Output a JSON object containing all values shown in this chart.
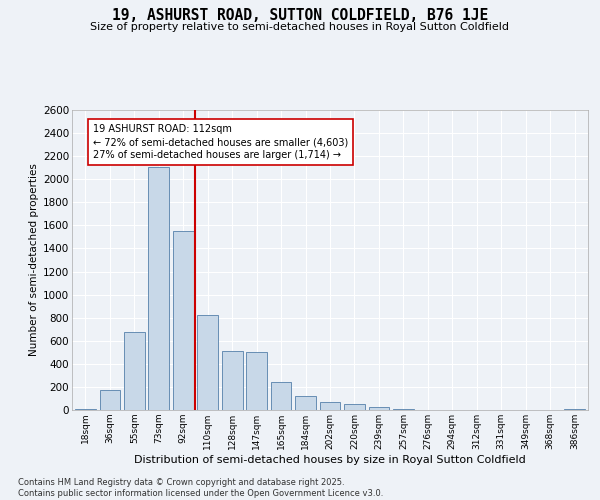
{
  "title": "19, ASHURST ROAD, SUTTON COLDFIELD, B76 1JE",
  "subtitle": "Size of property relative to semi-detached houses in Royal Sutton Coldfield",
  "xlabel": "Distribution of semi-detached houses by size in Royal Sutton Coldfield",
  "ylabel": "Number of semi-detached properties",
  "categories": [
    "18sqm",
    "36sqm",
    "55sqm",
    "73sqm",
    "92sqm",
    "110sqm",
    "128sqm",
    "147sqm",
    "165sqm",
    "184sqm",
    "202sqm",
    "220sqm",
    "239sqm",
    "257sqm",
    "276sqm",
    "294sqm",
    "312sqm",
    "331sqm",
    "349sqm",
    "368sqm",
    "386sqm"
  ],
  "values": [
    10,
    175,
    680,
    2110,
    1550,
    820,
    510,
    500,
    245,
    120,
    70,
    55,
    30,
    10,
    0,
    0,
    0,
    0,
    0,
    0,
    10
  ],
  "bar_color": "#c8d8e8",
  "bar_edge_color": "#5580aa",
  "vline_x_index": 4.5,
  "vline_color": "#cc0000",
  "annotation_text": "19 ASHURST ROAD: 112sqm\n← 72% of semi-detached houses are smaller (4,603)\n27% of semi-detached houses are larger (1,714) →",
  "annotation_box_color": "#ffffff",
  "annotation_box_edge": "#cc0000",
  "ylim": [
    0,
    2600
  ],
  "yticks": [
    0,
    200,
    400,
    600,
    800,
    1000,
    1200,
    1400,
    1600,
    1800,
    2000,
    2200,
    2400,
    2600
  ],
  "background_color": "#eef2f7",
  "grid_color": "#ffffff",
  "footer_line1": "Contains HM Land Registry data © Crown copyright and database right 2025.",
  "footer_line2": "Contains public sector information licensed under the Open Government Licence v3.0."
}
